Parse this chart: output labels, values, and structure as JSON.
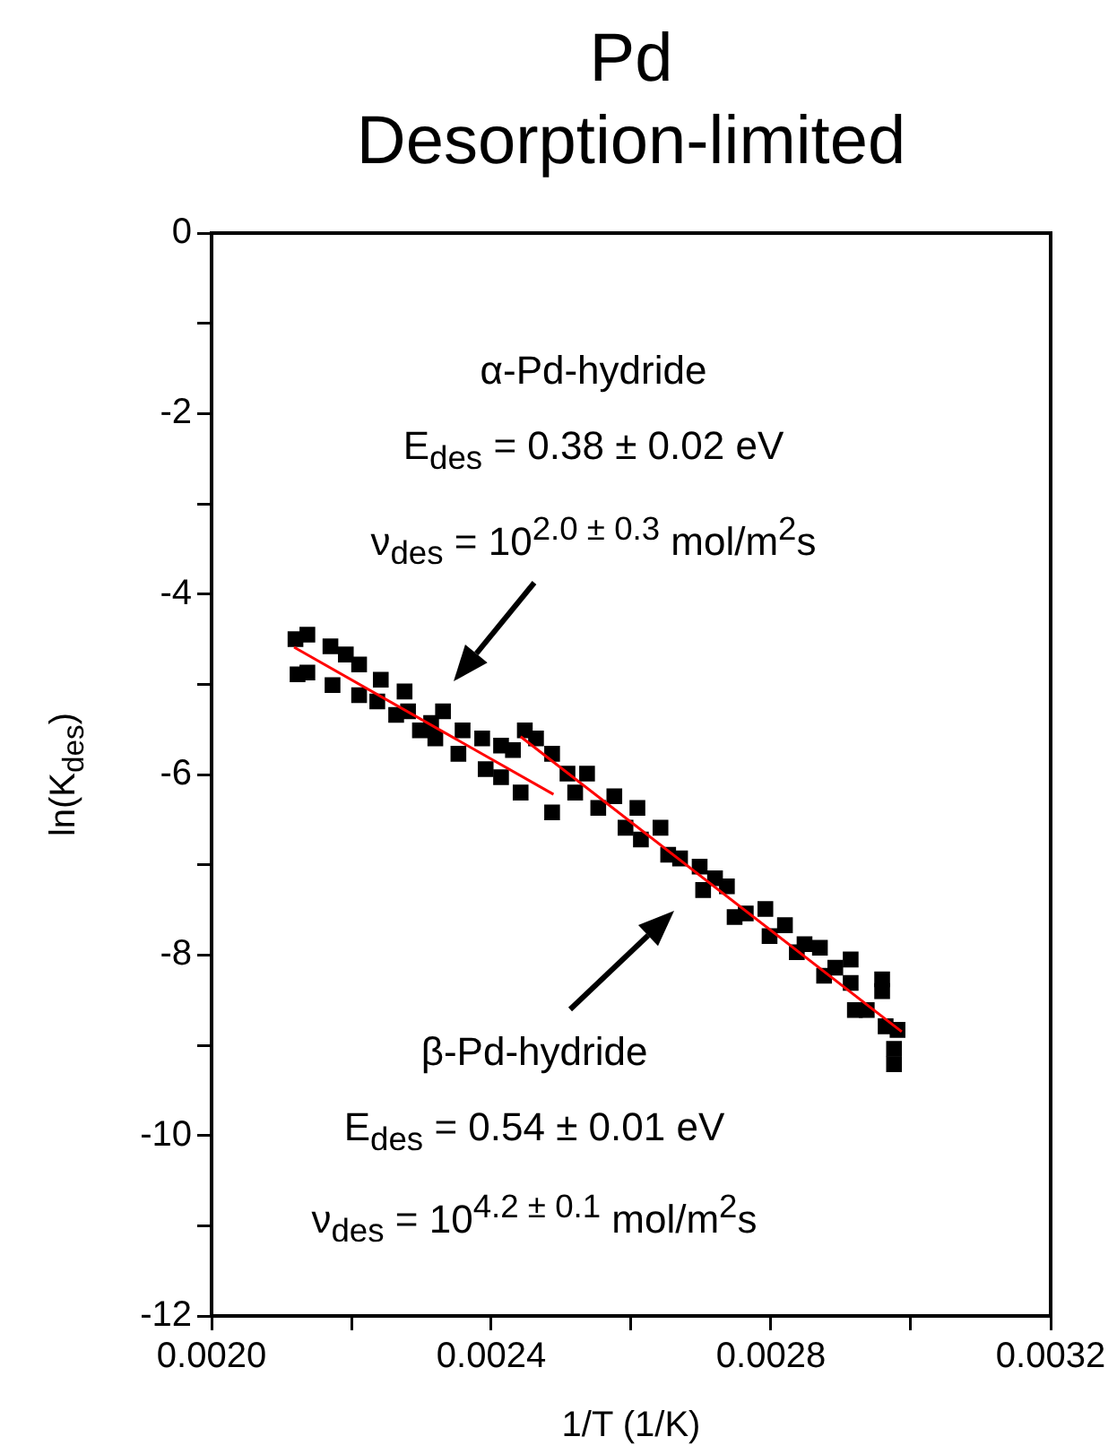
{
  "chart_data": {
    "type": "scatter",
    "title": "Pd",
    "subtitle": "Desorption-limited",
    "xlabel": "1/T (1/K)",
    "ylabel": "ln(K$_{des}$)",
    "xlim": [
      0.002,
      0.0032
    ],
    "ylim": [
      -12,
      0
    ],
    "xticks": [
      {
        "value": 0.002,
        "label": "0.0020"
      },
      {
        "value": 0.0022,
        "label": null
      },
      {
        "value": 0.0024,
        "label": "0.0024"
      },
      {
        "value": 0.0026,
        "label": null
      },
      {
        "value": 0.0028,
        "label": "0.0028"
      },
      {
        "value": 0.003,
        "label": null
      },
      {
        "value": 0.0032,
        "label": "0.0032"
      }
    ],
    "yticks": [
      0,
      {
        "value": -1,
        "label": null
      },
      -2,
      {
        "value": -3,
        "label": null
      },
      -4,
      {
        "value": -5,
        "label": null
      },
      -6,
      {
        "value": -7,
        "label": null
      },
      -8,
      {
        "value": -9,
        "label": null
      },
      -10,
      {
        "value": -11,
        "label": null
      },
      -12
    ],
    "grid": false,
    "legend": false,
    "series": [
      {
        "type": "scatter",
        "marker": "square",
        "color": "#000000",
        "x": [
          0.00212,
          0.002137,
          0.002123,
          0.002137,
          0.00217,
          0.002192,
          0.002173,
          0.002211,
          0.002211,
          0.002242,
          0.002237,
          0.002276,
          0.002264,
          0.002298,
          0.002281,
          0.002314,
          0.002331,
          0.00232,
          0.002359,
          0.002353,
          0.002387,
          0.002392,
          0.002414,
          0.002414,
          0.002431,
          0.002442,
          0.002448,
          0.002464,
          0.002487,
          0.002487,
          0.002509,
          0.00252,
          0.002537,
          0.002553,
          0.002576,
          0.002592,
          0.002609,
          0.002614,
          0.002642,
          0.002653,
          0.00267,
          0.002698,
          0.002703,
          0.00272,
          0.002737,
          0.002748,
          0.002764,
          0.002792,
          0.002798,
          0.00282,
          0.002837,
          0.002848,
          0.00287,
          0.002876,
          0.002892,
          0.002914,
          0.00292,
          0.002914,
          0.002937,
          0.002959,
          0.002959,
          0.002964,
          0.002981,
          0.002976,
          0.002976
        ],
        "values": [
          -4.5,
          -4.45,
          -4.89,
          -4.87,
          -4.58,
          -4.67,
          -5.01,
          -4.78,
          -5.12,
          -4.95,
          -5.19,
          -5.08,
          -5.34,
          -5.51,
          -5.3,
          -5.43,
          -5.3,
          -5.6,
          -5.51,
          -5.77,
          -5.6,
          -5.94,
          -5.68,
          -6.03,
          -5.73,
          -6.2,
          -5.51,
          -5.6,
          -6.42,
          -5.77,
          -5.99,
          -6.2,
          -5.99,
          -6.37,
          -6.24,
          -6.59,
          -6.37,
          -6.72,
          -6.59,
          -6.89,
          -6.93,
          -7.02,
          -7.28,
          -7.15,
          -7.24,
          -7.58,
          -7.54,
          -7.49,
          -7.79,
          -7.67,
          -7.97,
          -7.88,
          -7.92,
          -8.23,
          -8.14,
          -8.05,
          -8.61,
          -8.31,
          -8.61,
          -8.27,
          -8.4,
          -8.79,
          -8.83,
          -9.04,
          -9.21
        ]
      },
      {
        "type": "line",
        "marker": "none",
        "color": "#ff0000",
        "x": [
          0.002118,
          0.002489
        ],
        "values": [
          -4.59,
          -6.22
        ]
      },
      {
        "type": "line",
        "marker": "none",
        "color": "#ff0000",
        "x": [
          0.002442,
          0.002987
        ],
        "values": [
          -5.58,
          -8.85
        ]
      }
    ],
    "annotations": [
      "α-Pd-hydride",
      "E$_{des}$ = 0.38 ± 0.02 eV",
      "ν$_{des}$ = 10$^{2.0 ± 0.3}$ mol/m$^{2}$s",
      "β-Pd-hydride",
      "E$_{des}$ = 0.54 ± 0.01 eV",
      "ν$_{des}$ = 10$^{4.2 ± 0.1}$ mol/m$^{2}$s"
    ]
  }
}
